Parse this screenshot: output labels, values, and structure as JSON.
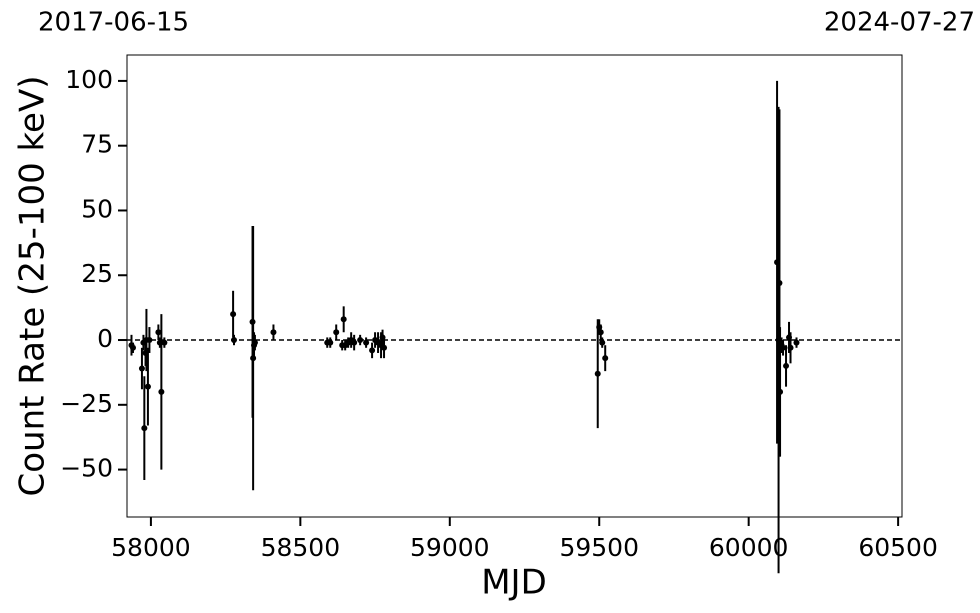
{
  "chart_data": {
    "type": "scatter",
    "annotations": [
      "2017-06-15",
      "2024-07-27"
    ],
    "x_label": "MJD",
    "y_label": "Count Rate (25-100 keV)",
    "color": "#000000",
    "x": [
      57935,
      57940,
      57970,
      57975,
      57978,
      57982,
      57985,
      57990,
      57995,
      58025,
      58030,
      58035,
      58045,
      58275,
      58278,
      58340,
      58342,
      58345,
      58348,
      58410,
      58590,
      58600,
      58620,
      58640,
      58645,
      58650,
      58660,
      58670,
      58680,
      58700,
      58720,
      58740,
      58750,
      58760,
      58770,
      58775,
      58780,
      59495,
      59500,
      59505,
      59510,
      59520,
      60095,
      60100,
      60103,
      60105,
      60110,
      60115,
      60125,
      60135,
      60140,
      60160
    ],
    "values": [
      -2,
      -3,
      -11,
      -1,
      -34,
      -5,
      0,
      -18,
      0,
      3,
      -1,
      -20,
      -1,
      10,
      0,
      7,
      -7,
      -2,
      -1,
      3,
      -1,
      -1,
      3,
      -2,
      8,
      -2,
      -1,
      0,
      -1,
      0,
      -1,
      -4,
      0,
      -1,
      -2,
      1,
      -3,
      -13,
      5,
      3,
      -1,
      -7,
      30,
      0,
      22,
      -20,
      -2,
      -3,
      -10,
      1,
      -3,
      -1
    ],
    "errors": [
      4,
      2,
      8,
      3,
      20,
      5,
      12,
      15,
      5,
      3,
      2,
      30,
      2,
      9,
      2,
      37,
      51,
      5,
      3,
      3,
      2,
      2,
      3,
      2,
      5,
      2,
      2,
      3,
      3,
      2,
      2,
      3,
      3,
      4,
      5,
      3,
      4,
      21,
      3,
      3,
      2,
      5,
      70,
      90,
      67,
      25,
      3,
      3,
      8,
      6,
      6,
      2
    ],
    "hline": 0,
    "xlim": [
      57920,
      60513
    ],
    "ylim": [
      -68.3,
      110
    ],
    "xticks": [
      58000,
      58500,
      59000,
      59500,
      60000,
      60500
    ],
    "yticks": [
      {
        "value": -50,
        "label": "−50"
      },
      {
        "value": -25,
        "label": "−25"
      },
      0,
      25,
      50,
      75,
      100
    ]
  }
}
